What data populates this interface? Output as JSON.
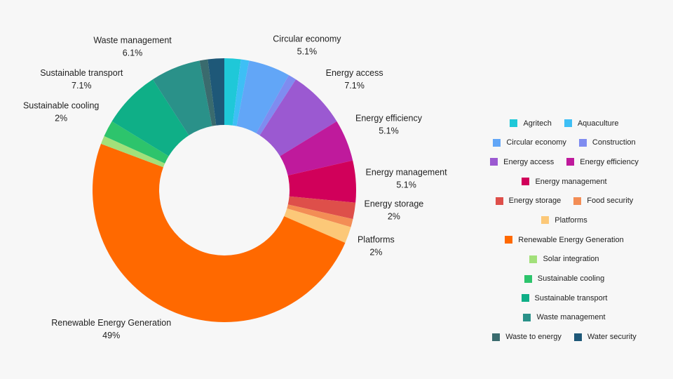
{
  "chart_data": {
    "type": "donut",
    "categories": [
      "Agritech",
      "Aquaculture",
      "Circular economy",
      "Construction",
      "Energy access",
      "Energy efficiency",
      "Energy management",
      "Energy storage",
      "Food security",
      "Platforms",
      "Renewable Energy Generation",
      "Solar integration",
      "Sustainable cooling",
      "Sustainable transport",
      "Waste management",
      "Waste to energy",
      "Water security"
    ],
    "values": [
      2,
      1,
      5.1,
      1,
      7.1,
      5.1,
      5.1,
      2,
      1,
      2,
      49,
      1,
      2,
      7.1,
      6.1,
      1,
      2
    ],
    "value_labels": [
      null,
      null,
      "5.1%",
      null,
      "7.1%",
      "5.1%",
      "5.1%",
      "2%",
      null,
      "2%",
      "49%",
      null,
      "2%",
      "7.1%",
      "6.1%",
      null,
      null
    ],
    "colors": [
      "#1fc8d8",
      "#3ebff5",
      "#62a6f7",
      "#7f8cf0",
      "#9b59d1",
      "#bf1a9c",
      "#d1005a",
      "#de4f4a",
      "#f38d55",
      "#fcc878",
      "#ff6900",
      "#a2e07a",
      "#2dc46c",
      "#0faf87",
      "#2a9189",
      "#3a6b6e",
      "#1e5878"
    ],
    "legend": "right"
  }
}
